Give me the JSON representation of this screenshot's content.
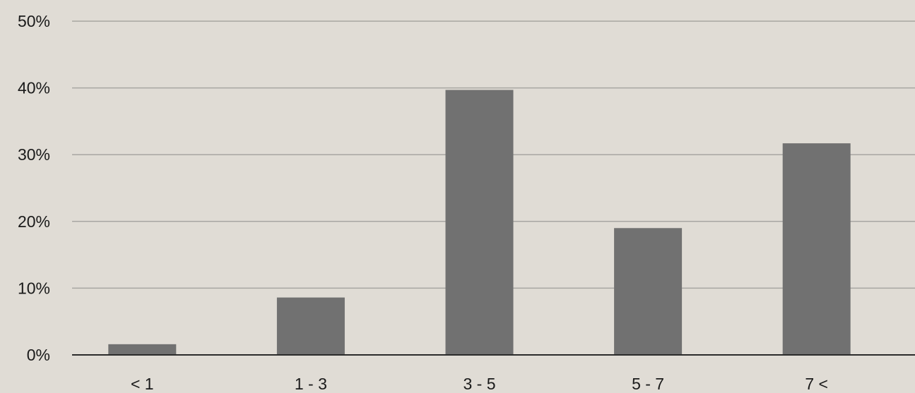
{
  "chart_data": {
    "type": "bar",
    "categories": [
      "< 1",
      "1 - 3",
      "3 - 5",
      "5 - 7",
      "7 <"
    ],
    "values": [
      1.6,
      8.6,
      39.7,
      19.0,
      31.7
    ],
    "ylim": [
      0,
      50
    ],
    "yticks": [
      0,
      10,
      20,
      30,
      40,
      50
    ],
    "ytick_labels": [
      "0%",
      "10%",
      "20%",
      "30%",
      "40%",
      "50%"
    ],
    "grid": true,
    "legend": false,
    "title": "",
    "xlabel": "",
    "ylabel": ""
  },
  "colors": {
    "background": "#e0dcd5",
    "bar": "#717171",
    "gridline": "#a8a6a2",
    "axis": "#2b2b2b",
    "text": "#1a1a1a"
  }
}
